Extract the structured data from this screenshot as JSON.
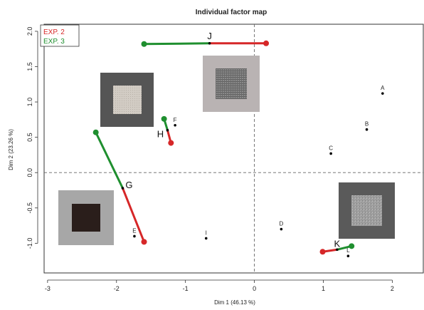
{
  "chart_data": {
    "type": "scatter",
    "title": "Individual factor map",
    "xlabel": "Dim 1 (46.13 %)",
    "ylabel": "Dim 2 (23.26 %)",
    "xlim": [
      -3.05,
      2.45
    ],
    "ylim": [
      -1.42,
      2.1
    ],
    "xticks": [
      -3,
      -2,
      -1,
      0,
      1,
      2
    ],
    "yticks": [
      -1.0,
      -0.5,
      0.0,
      0.5,
      1.0,
      1.5,
      2.0
    ],
    "xtick_labels": [
      "-3",
      "-2",
      "-1",
      "0",
      "1",
      "2"
    ],
    "ytick_labels": [
      "-1.0",
      "-0.5",
      "0.0",
      "0.5",
      "1.0",
      "1.5",
      "2.0"
    ],
    "reference_lines": {
      "x": 0,
      "y": 0,
      "style": "dashed"
    },
    "legend": {
      "placement": "top-left",
      "entries": [
        {
          "name": "EXP. 2",
          "color": "#d62728"
        },
        {
          "name": "EXP. 3",
          "color": "#1f8f2f"
        }
      ]
    },
    "points": [
      {
        "label": "A",
        "x": 1.86,
        "y": 1.12
      },
      {
        "label": "B",
        "x": 1.63,
        "y": 0.61
      },
      {
        "label": "C",
        "x": 1.11,
        "y": 0.27
      },
      {
        "label": "D",
        "x": 0.39,
        "y": -0.8
      },
      {
        "label": "E",
        "x": -1.74,
        "y": -0.9
      },
      {
        "label": "F",
        "x": -1.15,
        "y": 0.67
      },
      {
        "label": "I",
        "x": -0.7,
        "y": -0.93
      },
      {
        "label": "L",
        "x": 1.36,
        "y": -1.18
      }
    ],
    "segments": [
      {
        "label": "J",
        "center": [
          -0.65,
          1.83
        ],
        "exp2": [
          0.17,
          1.83
        ],
        "exp3": [
          -1.6,
          1.82
        ]
      },
      {
        "label": "H",
        "center": [
          -1.26,
          0.6
        ],
        "exp2": [
          -1.21,
          0.42
        ],
        "exp3": [
          -1.31,
          0.76
        ]
      },
      {
        "label": "G",
        "center": [
          -1.91,
          -0.22
        ],
        "exp2": [
          -1.6,
          -0.98
        ],
        "exp3": [
          -2.3,
          0.57
        ]
      },
      {
        "label": "K",
        "center": [
          1.2,
          -1.09
        ],
        "exp2": [
          0.99,
          -1.12
        ],
        "exp3": [
          1.41,
          -1.04
        ]
      }
    ],
    "colors": {
      "exp2": "#d62728",
      "exp3": "#1f8f2f",
      "points": "#000000"
    },
    "image_insets": [
      {
        "name": "texture-fine-light",
        "near": "H",
        "frame": "#555555",
        "inner": "#cfc9c0"
      },
      {
        "name": "texture-mesh-medium",
        "near": "J",
        "frame": "#b9b3b3",
        "inner": "#787878"
      },
      {
        "name": "texture-dark-brown",
        "near": "E",
        "frame": "#a7a7a7",
        "inner": "#2a1e1b"
      },
      {
        "name": "texture-speckle-gray",
        "near": "K",
        "frame": "#5a5a5a",
        "inner": "#9c9c9c"
      }
    ]
  }
}
